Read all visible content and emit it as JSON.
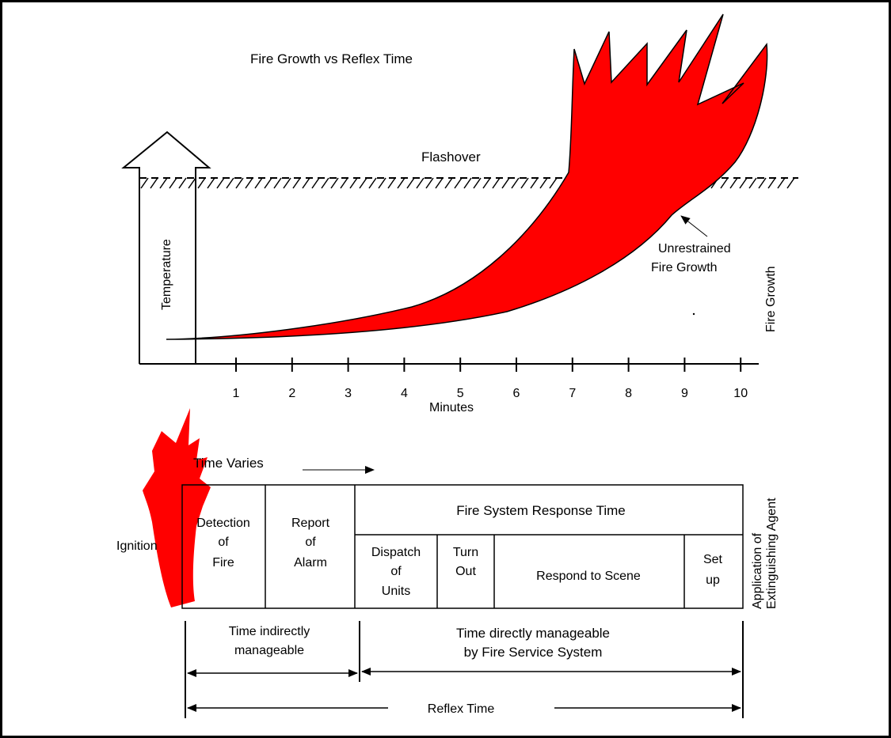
{
  "title": "Fire Growth vs Reflex Time",
  "flashover_label": "Flashover",
  "temperature_label": "Temperature",
  "unrestrained_label": [
    "Unrestrained",
    "Fire Growth"
  ],
  "fire_growth_label": "Fire Growth",
  "x_axis": {
    "label": "Minutes",
    "ticks": [
      "1",
      "2",
      "3",
      "4",
      "5",
      "6",
      "7",
      "8",
      "9",
      "10"
    ]
  },
  "ignition_label": "Ignition",
  "time_varies_label": "Time Varies",
  "response_header": "Fire System Response Time",
  "phases": {
    "detection": [
      "Detection",
      "of",
      "Fire"
    ],
    "report": [
      "Report",
      "of",
      "Alarm"
    ],
    "dispatch": [
      "Dispatch",
      "of",
      "Units"
    ],
    "turnout": [
      "Turn",
      "Out"
    ],
    "respond": "Respond to Scene",
    "setup": [
      "Set",
      "up"
    ]
  },
  "application_label": [
    "Application of",
    "Extinguishing Agent"
  ],
  "indirect_label": [
    "Time indirectly",
    "manageable"
  ],
  "direct_label": [
    "Time directly manageable",
    "by Fire Service System"
  ],
  "reflex_label": "Reflex Time",
  "colors": {
    "fire": "#ff0000",
    "line": "#000000"
  }
}
